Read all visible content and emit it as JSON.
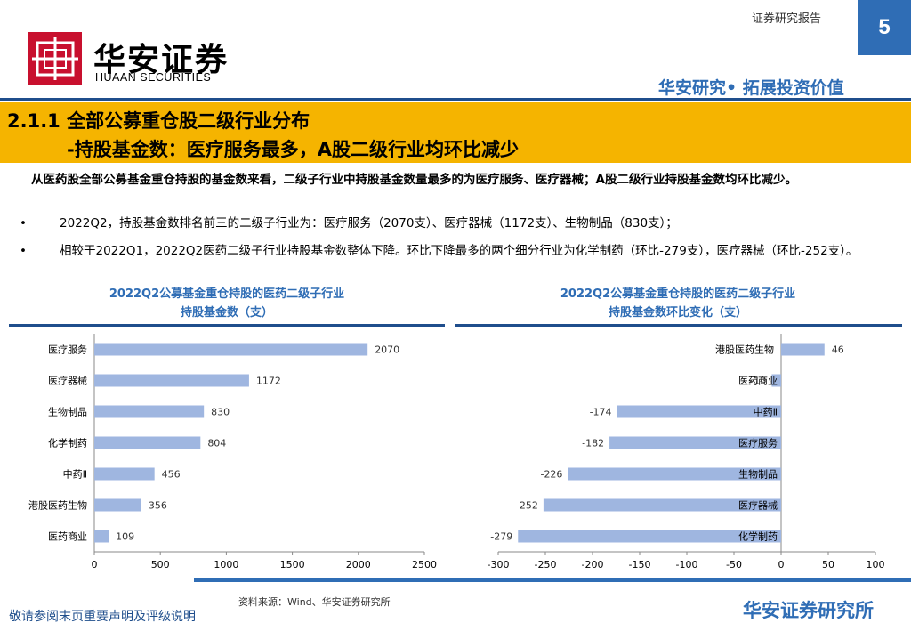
{
  "header": {
    "logo_cn": "华安证券",
    "logo_en": "HUAAN SECURITIES",
    "report_tag": "证券研究报告",
    "page_number": "5",
    "slogan": "华安研究• 拓展投资价值"
  },
  "title": {
    "line1": "2.1.1 全部公募重仓股二级行业分布",
    "line2": "-持股基金数：医疗服务最多，A股二级行业均环比减少"
  },
  "body": {
    "lead": "从医药股全部公募基金重仓持股的基金数来看，二级子行业中持股基金数量最多的为医疗服务、医疗器械；A股二级行业持股基金数均环比减少。",
    "bullets": [
      "2022Q2，持股基金数排名前三的二级子行业为：医疗服务（2070支）、医疗器械（1172支）、生物制品（830支）；",
      "相较于2022Q1，2022Q2医药二级子行业持股基金数整体下降。环比下降最多的两个细分行业为化学制药（环比-279支），医疗器械（环比-252支）。"
    ],
    "bullet_symbol": "•"
  },
  "footer": {
    "source": "资料来源：Wind、华安证券研究所",
    "disclaimer": "敬请参阅末页重要声明及评级说明",
    "brand": "华安证券研究所"
  },
  "colors": {
    "bar": "#9fb6e0",
    "accent_blue": "#2f6db5",
    "title_band": "#f5b400",
    "brand_red": "#c8102e"
  },
  "chart_data": [
    {
      "type": "bar",
      "orientation": "horizontal",
      "title_line1": "2022Q2公募基金重仓持股的医药二级子行业",
      "title_line2": "持股基金数（支）",
      "categories": [
        "医疗服务",
        "医疗器械",
        "生物制品",
        "化学制药",
        "中药Ⅱ",
        "港股医药生物",
        "医药商业"
      ],
      "values": [
        2070,
        1172,
        830,
        804,
        456,
        356,
        109
      ],
      "xlim": [
        0,
        2500
      ],
      "xticks": [
        0,
        500,
        1000,
        1500,
        2000,
        2500
      ],
      "grid": false
    },
    {
      "type": "bar",
      "orientation": "horizontal",
      "title_line1": "2022Q2公募基金重仓持股的医药二级子行业",
      "title_line2": "持股基金数环比变化（支）",
      "categories": [
        "港股医药生物",
        "医药商业",
        "中药Ⅱ",
        "医疗服务",
        "生物制品",
        "医疗器械",
        "化学制药"
      ],
      "values": [
        46,
        -10,
        -174,
        -182,
        -226,
        -252,
        -279
      ],
      "xlim": [
        -300,
        100
      ],
      "xticks": [
        -300,
        -250,
        -200,
        -150,
        -100,
        -50,
        0,
        50,
        100
      ],
      "grid": false
    }
  ]
}
